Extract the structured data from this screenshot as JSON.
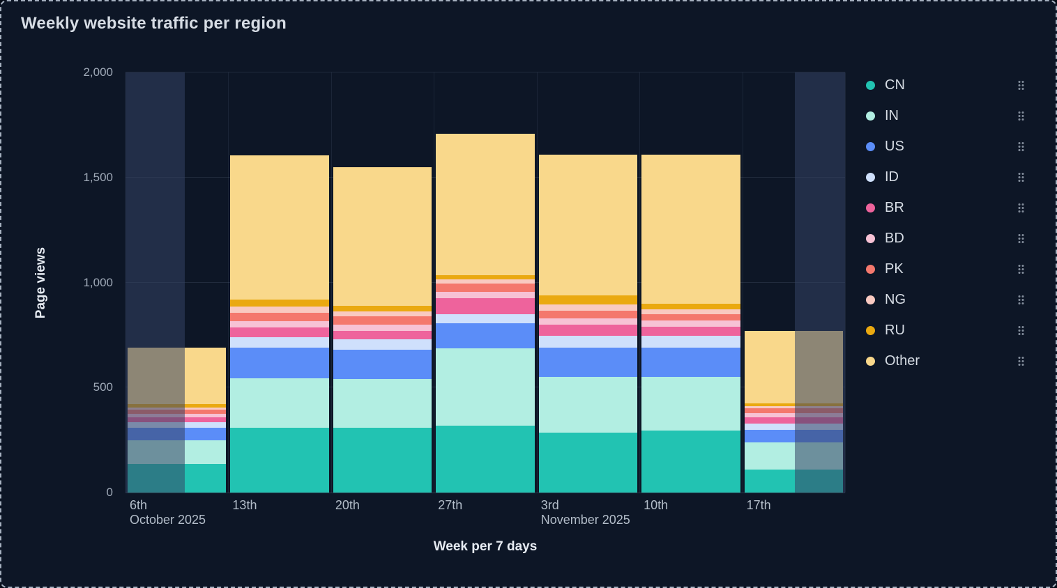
{
  "title": "Weekly website traffic per region",
  "y_axis": {
    "label": "Page views",
    "tick_labels": [
      "0",
      "500",
      "1,000",
      "1,500",
      "2,000"
    ],
    "tick_values": [
      0,
      500,
      1000,
      1500,
      2000
    ]
  },
  "x_axis": {
    "label": "Week per 7 days",
    "tick_labels": [
      "6th",
      "13th",
      "20th",
      "27th",
      "3rd",
      "10th",
      "17th"
    ],
    "month_labels": [
      {
        "text": "October 2025",
        "category_index": 0
      },
      {
        "text": "November 2025",
        "category_index": 4
      }
    ]
  },
  "legend": {
    "position": "right",
    "items": [
      {
        "label": "CN",
        "color": "#22c3b2"
      },
      {
        "label": "IN",
        "color": "#b2eee2"
      },
      {
        "label": "US",
        "color": "#5b8df8"
      },
      {
        "label": "ID",
        "color": "#cfe0fc"
      },
      {
        "label": "BR",
        "color": "#ee639c"
      },
      {
        "label": "BD",
        "color": "#f7c2d5"
      },
      {
        "label": "PK",
        "color": "#f4786d"
      },
      {
        "label": "NG",
        "color": "#f9cac1"
      },
      {
        "label": "RU",
        "color": "#eaa910"
      },
      {
        "label": "Other",
        "color": "#f9d88b"
      }
    ]
  },
  "chart_data": {
    "type": "bar",
    "stacked": true,
    "title": "Weekly website traffic per region",
    "xlabel": "Week per 7 days",
    "ylabel": "Page views",
    "ylim": [
      0,
      2000
    ],
    "grid": true,
    "legend_position": "right",
    "categories": [
      "6th",
      "13th",
      "20th",
      "27th",
      "3rd",
      "10th",
      "17th"
    ],
    "category_months": [
      "October 2025",
      null,
      null,
      null,
      "November 2025",
      null,
      null
    ],
    "series": [
      {
        "name": "CN",
        "color": "#22c3b2",
        "values": [
          135,
          310,
          310,
          320,
          285,
          295,
          110
        ]
      },
      {
        "name": "IN",
        "color": "#b2eee2",
        "values": [
          115,
          235,
          230,
          365,
          265,
          255,
          130
        ]
      },
      {
        "name": "US",
        "color": "#5b8df8",
        "values": [
          60,
          145,
          140,
          120,
          140,
          140,
          60
        ]
      },
      {
        "name": "ID",
        "color": "#cfe0fc",
        "values": [
          25,
          50,
          50,
          45,
          55,
          55,
          30
        ]
      },
      {
        "name": "BR",
        "color": "#ee639c",
        "values": [
          25,
          45,
          40,
          75,
          55,
          45,
          30
        ]
      },
      {
        "name": "BD",
        "color": "#f7c2d5",
        "values": [
          15,
          30,
          30,
          30,
          30,
          30,
          18
        ]
      },
      {
        "name": "PK",
        "color": "#f4786d",
        "values": [
          20,
          40,
          40,
          40,
          35,
          30,
          22
        ]
      },
      {
        "name": "NG",
        "color": "#f9cac1",
        "values": [
          10,
          30,
          22,
          20,
          30,
          22,
          12
        ]
      },
      {
        "name": "RU",
        "color": "#eaa910",
        "values": [
          15,
          35,
          28,
          20,
          45,
          26,
          13
        ]
      },
      {
        "name": "Other",
        "color": "#f9d88b",
        "values": [
          270,
          685,
          660,
          675,
          670,
          710,
          345
        ]
      }
    ],
    "highlight_regions": [
      {
        "from_fraction": 0.0,
        "to_fraction": 0.082
      },
      {
        "from_fraction": 0.93,
        "to_fraction": 1.0
      }
    ]
  }
}
